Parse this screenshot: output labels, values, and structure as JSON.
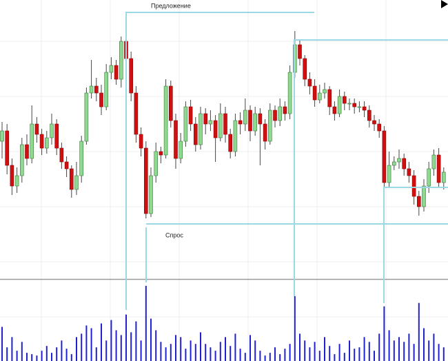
{
  "chart_data": {
    "type": "candlestick",
    "annotations": [
      "Предложение",
      "Спрос"
    ],
    "ylim": [
      0,
      405
    ],
    "volume_ylim": [
      0,
      120
    ],
    "up_color": "#8fd88f",
    "down_color": "#d01010",
    "volume_color": "#2020d0",
    "open": [
      200,
      215,
      165,
      135,
      150,
      195,
      175,
      225,
      210,
      190,
      205,
      225,
      190,
      170,
      160,
      130,
      150,
      200,
      270,
      280,
      270,
      250,
      300,
      310,
      290,
      345,
      320,
      270,
      210,
      190,
      95,
      150,
      185,
      180,
      280,
      230,
      175,
      200,
      250,
      225,
      195,
      240,
      225,
      230,
      205,
      240,
      210,
      185,
      230,
      225,
      245,
      215,
      240,
      225,
      200,
      245,
      230,
      250,
      240,
      300,
      340,
      320,
      290,
      280,
      260,
      270,
      275,
      250,
      240,
      265,
      255,
      255,
      250,
      250,
      245,
      230,
      225,
      215,
      140,
      165,
      170,
      175,
      160,
      150,
      120,
      105,
      135,
      160,
      180,
      140
    ],
    "high": [
      228,
      225,
      175,
      162,
      205,
      210,
      252,
      235,
      218,
      215,
      240,
      232,
      198,
      178,
      165,
      170,
      208,
      278,
      318,
      292,
      282,
      312,
      322,
      318,
      352,
      385,
      330,
      280,
      220,
      200,
      162,
      198,
      192,
      290,
      288,
      240,
      212,
      258,
      260,
      235,
      250,
      248,
      245,
      238,
      255,
      250,
      218,
      240,
      242,
      262,
      252,
      250,
      248,
      232,
      255,
      252,
      262,
      258,
      310,
      360,
      348,
      325,
      300,
      290,
      282,
      285,
      280,
      258,
      275,
      272,
      262,
      262,
      258,
      258,
      252,
      238,
      232,
      222,
      185,
      178,
      188,
      182,
      170,
      158,
      128,
      145,
      170,
      188,
      190,
      162
    ],
    "low": [
      175,
      152,
      122,
      125,
      140,
      165,
      168,
      198,
      180,
      182,
      195,
      180,
      160,
      148,
      118,
      122,
      140,
      195,
      262,
      258,
      238,
      245,
      290,
      282,
      278,
      312,
      258,
      198,
      178,
      88,
      90,
      140,
      168,
      175,
      220,
      160,
      168,
      192,
      215,
      185,
      188,
      210,
      215,
      170,
      200,
      198,
      175,
      178,
      210,
      215,
      200,
      208,
      165,
      188,
      195,
      220,
      222,
      230,
      232,
      292,
      310,
      280,
      268,
      250,
      255,
      262,
      238,
      230,
      235,
      245,
      245,
      240,
      242,
      235,
      220,
      215,
      205,
      130,
      132,
      158,
      160,
      150,
      140,
      108,
      92,
      98,
      125,
      150,
      132,
      130
    ],
    "close": [
      215,
      165,
      135,
      150,
      195,
      175,
      225,
      210,
      190,
      205,
      225,
      190,
      170,
      160,
      130,
      150,
      200,
      270,
      280,
      270,
      250,
      300,
      310,
      290,
      345,
      320,
      270,
      210,
      190,
      95,
      150,
      185,
      180,
      280,
      230,
      175,
      200,
      250,
      225,
      195,
      240,
      225,
      230,
      205,
      240,
      210,
      185,
      230,
      225,
      245,
      215,
      240,
      225,
      200,
      245,
      230,
      250,
      240,
      300,
      340,
      320,
      290,
      280,
      260,
      270,
      275,
      250,
      240,
      265,
      255,
      255,
      250,
      250,
      245,
      230,
      225,
      215,
      140,
      165,
      170,
      175,
      160,
      150,
      120,
      105,
      135,
      160,
      180,
      140,
      155
    ],
    "volume": [
      50,
      20,
      35,
      15,
      28,
      12,
      10,
      8,
      15,
      22,
      12,
      20,
      30,
      18,
      10,
      35,
      40,
      52,
      48,
      20,
      55,
      30,
      60,
      45,
      38,
      68,
      42,
      58,
      30,
      110,
      62,
      45,
      28,
      20,
      25,
      38,
      35,
      18,
      30,
      25,
      42,
      25,
      20,
      15,
      28,
      35,
      22,
      40,
      18,
      12,
      38,
      30,
      15,
      8,
      12,
      20,
      10,
      18,
      25,
      95,
      40,
      30,
      20,
      28,
      15,
      35,
      22,
      10,
      25,
      12,
      30,
      18,
      20,
      35,
      28,
      15,
      40,
      80,
      45,
      30,
      35,
      28,
      40,
      25,
      85,
      48,
      30,
      40,
      25,
      20
    ]
  }
}
